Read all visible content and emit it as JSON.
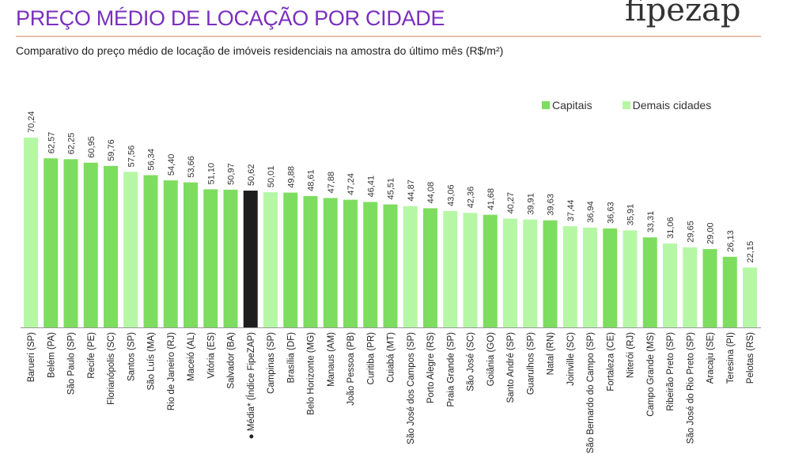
{
  "header": {
    "title": "PREÇO MÉDIO DE LOCAÇÃO POR CIDADE",
    "logo": "fipezap",
    "subtitle": "Comparativo do preço médio de locação de imóveis residenciais na amostra do último mês (R$/m²)"
  },
  "colors": {
    "capital": "#7ddd5f",
    "other": "#b6f7a6",
    "average": "#1e1e1e"
  },
  "chart_data": {
    "type": "bar",
    "title": "PREÇO MÉDIO DE LOCAÇÃO POR CIDADE",
    "ylabel": "R$/m²",
    "ylim": [
      0,
      72
    ],
    "grid": false,
    "legend_position": "top-right",
    "legend": [
      {
        "key": "capital",
        "label": "Capitais"
      },
      {
        "key": "other",
        "label": "Demais cidades"
      }
    ],
    "categories": [
      "Barueri (SP)",
      "Belém (PA)",
      "São Paulo (SP)",
      "Recife (PE)",
      "Florianópolis (SC)",
      "Santos (SP)",
      "São Luís (MA)",
      "Rio de Janeiro (RJ)",
      "Maceió (AL)",
      "Vitória (ES)",
      "Salvador (BA)",
      "Média* (Índice FipeZAP)",
      "Campinas (SP)",
      "Brasília (DF)",
      "Belo Horizonte (MG)",
      "Manaus (AM)",
      "João Pessoa (PB)",
      "Curitiba (PR)",
      "Cuiabá (MT)",
      "São José dos Campos (SP)",
      "Porto Alegre (RS)",
      "Praia Grande (SP)",
      "São José (SC)",
      "Goiânia (GO)",
      "Santo André (SP)",
      "Guarulhos (SP)",
      "Natal (RN)",
      "Joinville (SC)",
      "São Bernardo do Campo (SP)",
      "Fortaleza (CE)",
      "Niterói (RJ)",
      "Campo Grande (MS)",
      "Ribeirão Preto (SP)",
      "São José do Rio Preto (SP)",
      "Aracaju (SE)",
      "Teresina (PI)",
      "Pelotas (RS)"
    ],
    "values": [
      70.24,
      62.57,
      62.25,
      60.95,
      59.76,
      57.56,
      56.34,
      54.4,
      53.66,
      51.1,
      50.97,
      50.62,
      50.01,
      49.88,
      48.61,
      47.88,
      47.24,
      46.41,
      45.51,
      44.87,
      44.08,
      43.06,
      42.36,
      41.68,
      40.27,
      39.91,
      39.63,
      37.44,
      36.94,
      36.63,
      35.91,
      33.31,
      31.06,
      29.65,
      29.0,
      26.13,
      22.15
    ],
    "value_labels": [
      "70,24",
      "62,57",
      "62,25",
      "60,95",
      "59,76",
      "57,56",
      "56,34",
      "54,40",
      "53,66",
      "51,10",
      "50,97",
      "50,62",
      "50,01",
      "49,88",
      "48,61",
      "47,88",
      "47,24",
      "46,41",
      "45,51",
      "44,87",
      "44,08",
      "43,06",
      "42,36",
      "41,68",
      "40,27",
      "39,91",
      "39,63",
      "37,44",
      "36,94",
      "36,63",
      "35,91",
      "33,31",
      "31,06",
      "29,65",
      "29,00",
      "26,13",
      "22,15"
    ],
    "groups": [
      "other",
      "capital",
      "capital",
      "capital",
      "capital",
      "other",
      "capital",
      "capital",
      "capital",
      "capital",
      "capital",
      "average",
      "other",
      "capital",
      "capital",
      "capital",
      "capital",
      "capital",
      "capital",
      "other",
      "capital",
      "other",
      "other",
      "capital",
      "other",
      "other",
      "capital",
      "other",
      "other",
      "capital",
      "other",
      "capital",
      "other",
      "other",
      "capital",
      "capital",
      "other"
    ]
  }
}
